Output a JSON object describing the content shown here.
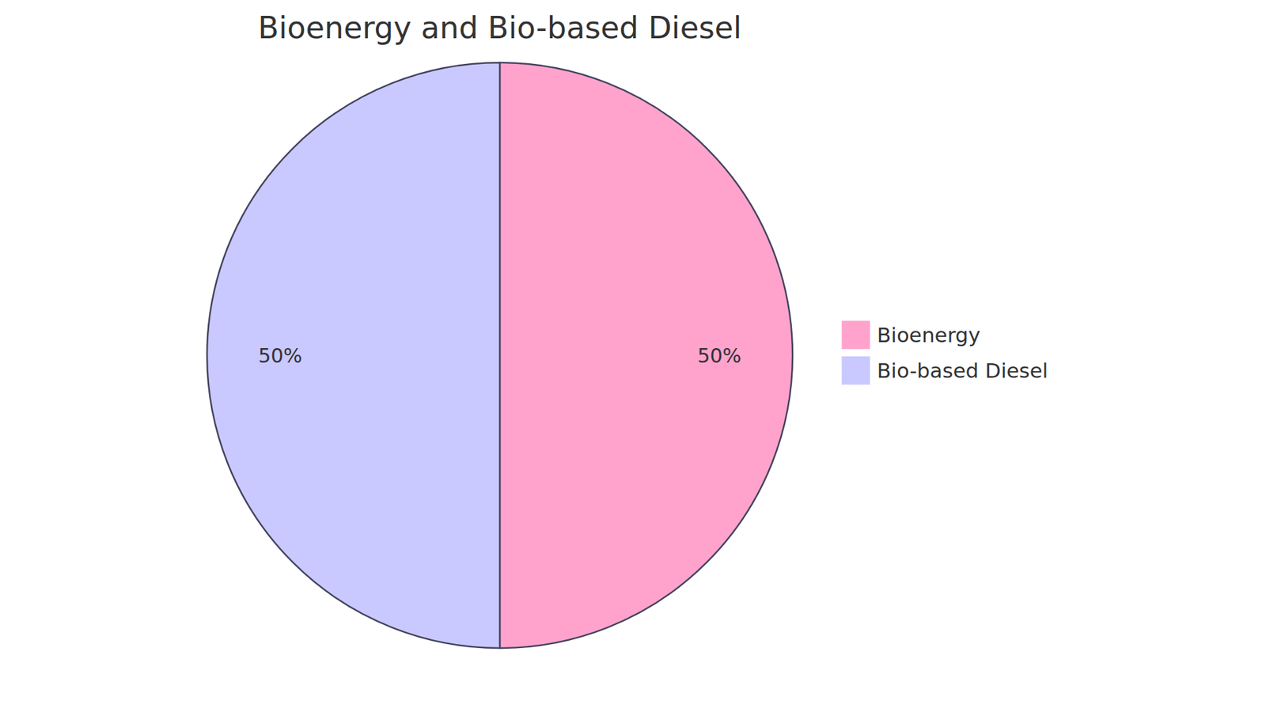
{
  "chart_data": {
    "type": "pie",
    "title": "Bioenergy and Bio-based Diesel",
    "categories": [
      "Bioenergy",
      "Bio-based Diesel"
    ],
    "values": [
      50,
      50
    ],
    "value_labels": [
      "50%",
      "50%"
    ],
    "colors": [
      "#FFA3CD",
      "#C9C9FF"
    ],
    "data_labels": true,
    "legend": "right"
  }
}
